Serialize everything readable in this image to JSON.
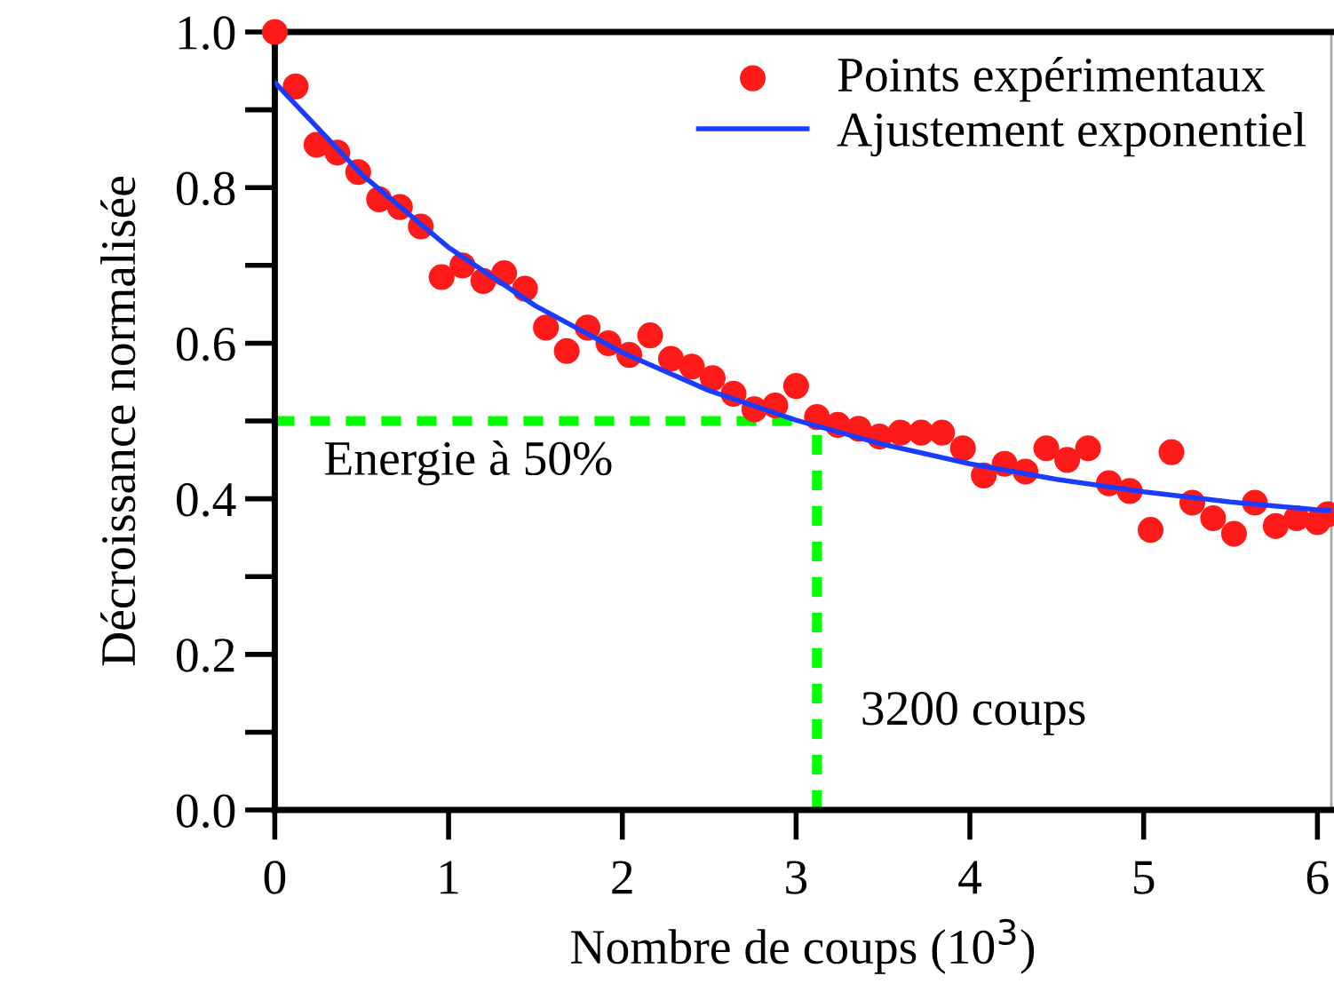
{
  "chart_data": {
    "type": "scatter",
    "xlabel": "Nombre de coups (10$^{3}$)",
    "ylabel": "Décroissance normalisée",
    "xlim": [
      0,
      6.08
    ],
    "ylim": [
      0,
      1.0
    ],
    "xticks": [
      0,
      1,
      2,
      3,
      4,
      5,
      6
    ],
    "yticks": [
      {
        "value": 0,
        "label": "0.0"
      },
      0.2,
      0.4,
      0.6,
      0.8,
      {
        "value": 1.0,
        "label": "1.0"
      }
    ],
    "grid": false,
    "legend": "top right",
    "series": [
      {
        "name": "Points expérimentaux",
        "marker": "circle",
        "color": "#ff1a1a",
        "x": [
          0,
          0.12,
          0.24,
          0.36,
          0.48,
          0.6,
          0.72,
          0.84,
          0.96,
          1.08,
          1.2,
          1.32,
          1.44,
          1.56,
          1.68,
          1.8,
          1.92,
          2.04,
          2.16,
          2.28,
          2.4,
          2.52,
          2.64,
          2.76,
          2.88,
          3.0,
          3.12,
          3.24,
          3.36,
          3.48,
          3.6,
          3.72,
          3.84,
          3.96,
          4.08,
          4.2,
          4.32,
          4.44,
          4.56,
          4.68,
          4.8,
          4.92,
          5.04,
          5.16,
          5.28,
          5.4,
          5.52,
          5.64,
          5.76,
          5.88,
          6.0,
          6.06
        ],
        "values": [
          1.0,
          0.93,
          0.855,
          0.845,
          0.82,
          0.785,
          0.775,
          0.75,
          0.685,
          0.7,
          0.68,
          0.69,
          0.67,
          0.62,
          0.59,
          0.62,
          0.6,
          0.585,
          0.61,
          0.58,
          0.57,
          0.555,
          0.535,
          0.515,
          0.52,
          0.545,
          0.505,
          0.495,
          0.49,
          0.48,
          0.485,
          0.485,
          0.485,
          0.465,
          0.43,
          0.445,
          0.435,
          0.465,
          0.45,
          0.465,
          0.42,
          0.41,
          0.36,
          0.46,
          0.395,
          0.375,
          0.355,
          0.395,
          0.365,
          0.375,
          0.37,
          0.38
        ]
      },
      {
        "name": "Ajustement exponentiel",
        "type": "line",
        "color": "#1a3cff",
        "line_style": "solid",
        "x": [
          0,
          0.5,
          1,
          1.5,
          2,
          2.5,
          3,
          3.5,
          4,
          4.5,
          5,
          5.5,
          6,
          6.08
        ],
        "values": [
          0.935,
          0.817,
          0.723,
          0.648,
          0.588,
          0.539,
          0.501,
          0.47,
          0.445,
          0.425,
          0.409,
          0.396,
          0.386,
          0.385
        ]
      }
    ],
    "ref_lines": [
      {
        "axis": "y",
        "value": 0.5,
        "label": "Energie à 50%",
        "color": "#00ff00",
        "line_style": "dashed"
      },
      {
        "axis": "x",
        "value": 3.12,
        "label": "3200 coups",
        "color": "#00ff00",
        "line_style": "dashed"
      }
    ]
  }
}
